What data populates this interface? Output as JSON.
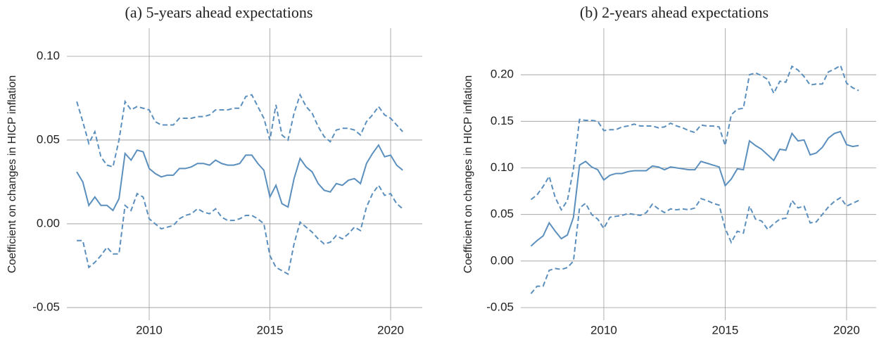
{
  "chart_data": [
    {
      "type": "line",
      "title": "(a) 5-years ahead expectations",
      "ylabel": "Coefficient on changes in HICP inflation",
      "x": [
        2007.0,
        2007.25,
        2007.5,
        2007.75,
        2008.0,
        2008.25,
        2008.5,
        2008.75,
        2009.0,
        2009.25,
        2009.5,
        2009.75,
        2010.0,
        2010.25,
        2010.5,
        2010.75,
        2011.0,
        2011.25,
        2011.5,
        2011.75,
        2012.0,
        2012.25,
        2012.5,
        2012.75,
        2013.0,
        2013.25,
        2013.5,
        2013.75,
        2014.0,
        2014.25,
        2014.5,
        2014.75,
        2015.0,
        2015.25,
        2015.5,
        2015.75,
        2016.0,
        2016.25,
        2016.5,
        2016.75,
        2017.0,
        2017.25,
        2017.5,
        2017.75,
        2018.0,
        2018.25,
        2018.5,
        2018.75,
        2019.0,
        2019.25,
        2019.5,
        2019.75,
        2020.0,
        2020.25,
        2020.5
      ],
      "series": [
        {
          "color": "#5b8fbd",
          "dashed": false,
          "values": [
            0.031,
            0.025,
            0.011,
            0.016,
            0.011,
            0.011,
            0.008,
            0.015,
            0.042,
            0.038,
            0.044,
            0.043,
            0.033,
            0.03,
            0.028,
            0.029,
            0.029,
            0.033,
            0.033,
            0.034,
            0.036,
            0.036,
            0.035,
            0.038,
            0.036,
            0.035,
            0.035,
            0.036,
            0.041,
            0.041,
            0.036,
            0.032,
            0.016,
            0.023,
            0.012,
            0.01,
            0.027,
            0.039,
            0.034,
            0.031,
            0.024,
            0.02,
            0.019,
            0.024,
            0.023,
            0.026,
            0.027,
            0.024,
            0.036,
            0.042,
            0.047,
            0.04,
            0.041,
            0.035,
            0.032
          ]
        },
        {
          "color": "#5b8fbd",
          "dashed": true,
          "values": [
            0.073,
            0.061,
            0.048,
            0.055,
            0.04,
            0.035,
            0.034,
            0.05,
            0.073,
            0.068,
            0.07,
            0.069,
            0.068,
            0.061,
            0.059,
            0.059,
            0.059,
            0.063,
            0.063,
            0.063,
            0.064,
            0.064,
            0.065,
            0.068,
            0.068,
            0.068,
            0.069,
            0.069,
            0.076,
            0.077,
            0.07,
            0.063,
            0.05,
            0.071,
            0.053,
            0.05,
            0.066,
            0.077,
            0.07,
            0.066,
            0.058,
            0.052,
            0.049,
            0.056,
            0.057,
            0.057,
            0.056,
            0.053,
            0.061,
            0.065,
            0.07,
            0.065,
            0.063,
            0.059,
            0.055
          ]
        },
        {
          "color": "#5b8fbd",
          "dashed": true,
          "values": [
            -0.01,
            -0.01,
            -0.026,
            -0.023,
            -0.019,
            -0.014,
            -0.018,
            -0.018,
            0.011,
            0.008,
            0.018,
            0.016,
            0.003,
            0.0,
            -0.003,
            -0.002,
            -0.001,
            0.003,
            0.005,
            0.006,
            0.009,
            0.007,
            0.006,
            0.009,
            0.004,
            0.002,
            0.002,
            0.003,
            0.005,
            0.005,
            0.003,
            0.0,
            -0.019,
            -0.026,
            -0.028,
            -0.03,
            -0.012,
            0.001,
            -0.002,
            -0.005,
            -0.009,
            -0.012,
            -0.011,
            -0.007,
            -0.009,
            -0.006,
            -0.002,
            -0.004,
            0.01,
            0.018,
            0.023,
            0.017,
            0.018,
            0.012,
            0.009
          ]
        }
      ],
      "xlim": [
        2006.59,
        2021.31
      ],
      "ylim": [
        -0.0576,
        0.1168
      ],
      "xticks": [
        2010,
        2015,
        2020
      ],
      "yticks": [
        {
          "value": 0.1,
          "label": "0.10"
        },
        0.05,
        {
          "value": 0,
          "label": "0.00"
        },
        -0.05
      ],
      "grid": true
    },
    {
      "type": "line",
      "title": "(b) 2-years ahead expectations",
      "ylabel": "Coefficient on changes in HICP inflation",
      "x": [
        2007.0,
        2007.25,
        2007.5,
        2007.75,
        2008.0,
        2008.25,
        2008.5,
        2008.75,
        2009.0,
        2009.25,
        2009.5,
        2009.75,
        2010.0,
        2010.25,
        2010.5,
        2010.75,
        2011.0,
        2011.25,
        2011.5,
        2011.75,
        2012.0,
        2012.25,
        2012.5,
        2012.75,
        2013.0,
        2013.25,
        2013.5,
        2013.75,
        2014.0,
        2014.25,
        2014.5,
        2014.75,
        2015.0,
        2015.25,
        2015.5,
        2015.75,
        2016.0,
        2016.25,
        2016.5,
        2016.75,
        2017.0,
        2017.25,
        2017.5,
        2017.75,
        2018.0,
        2018.25,
        2018.5,
        2018.75,
        2019.0,
        2019.25,
        2019.5,
        2019.75,
        2020.0,
        2020.25,
        2020.5
      ],
      "series": [
        {
          "color": "#5b8fbd",
          "dashed": false,
          "values": [
            0.016,
            0.022,
            0.027,
            0.041,
            0.032,
            0.024,
            0.028,
            0.047,
            0.103,
            0.107,
            0.101,
            0.098,
            0.087,
            0.092,
            0.094,
            0.094,
            0.096,
            0.097,
            0.097,
            0.097,
            0.102,
            0.101,
            0.098,
            0.101,
            0.1,
            0.099,
            0.098,
            0.098,
            0.107,
            0.105,
            0.103,
            0.101,
            0.081,
            0.088,
            0.099,
            0.098,
            0.129,
            0.124,
            0.12,
            0.114,
            0.108,
            0.12,
            0.119,
            0.137,
            0.129,
            0.13,
            0.114,
            0.116,
            0.122,
            0.132,
            0.137,
            0.139,
            0.125,
            0.123,
            0.124
          ]
        },
        {
          "color": "#5b8fbd",
          "dashed": true,
          "values": [
            0.066,
            0.071,
            0.08,
            0.091,
            0.068,
            0.055,
            0.065,
            0.099,
            0.152,
            0.151,
            0.151,
            0.15,
            0.14,
            0.141,
            0.141,
            0.144,
            0.145,
            0.147,
            0.145,
            0.145,
            0.145,
            0.143,
            0.144,
            0.148,
            0.145,
            0.143,
            0.14,
            0.138,
            0.146,
            0.145,
            0.145,
            0.144,
            0.124,
            0.157,
            0.163,
            0.164,
            0.2,
            0.202,
            0.199,
            0.195,
            0.18,
            0.193,
            0.192,
            0.209,
            0.205,
            0.198,
            0.189,
            0.19,
            0.19,
            0.203,
            0.206,
            0.21,
            0.191,
            0.186,
            0.183
          ]
        },
        {
          "color": "#5b8fbd",
          "dashed": true,
          "values": [
            -0.035,
            -0.027,
            -0.027,
            -0.01,
            -0.008,
            -0.009,
            -0.007,
            0.0,
            0.057,
            0.062,
            0.05,
            0.045,
            0.035,
            0.047,
            0.048,
            0.049,
            0.051,
            0.05,
            0.049,
            0.052,
            0.061,
            0.056,
            0.052,
            0.056,
            0.055,
            0.056,
            0.055,
            0.057,
            0.067,
            0.065,
            0.062,
            0.06,
            0.035,
            0.02,
            0.032,
            0.03,
            0.059,
            0.045,
            0.043,
            0.034,
            0.04,
            0.045,
            0.046,
            0.065,
            0.057,
            0.059,
            0.041,
            0.042,
            0.05,
            0.058,
            0.064,
            0.068,
            0.059,
            0.062,
            0.065
          ]
        }
      ],
      "xlim": [
        2006.58,
        2021.22
      ],
      "ylim": [
        -0.0636,
        0.25
      ],
      "xticks": [
        2010,
        2015,
        2020
      ],
      "yticks": [
        {
          "value": 0.2,
          "label": "0.20"
        },
        0.15,
        {
          "value": 0.1,
          "label": "0.10"
        },
        0.05,
        {
          "value": 0,
          "label": "0.00"
        },
        -0.05
      ],
      "grid": true
    }
  ]
}
